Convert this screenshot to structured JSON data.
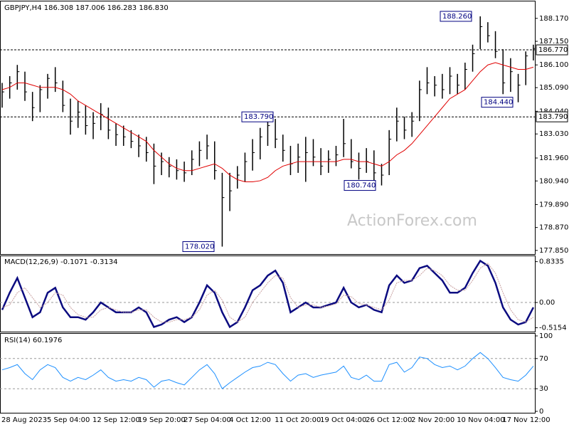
{
  "chart_data": [
    {
      "type": "ohlc",
      "title": "GBPJPY,H4  186.308 187.006 186.283 186.830",
      "watermark": "ActionForex.com",
      "high": [
        185.3,
        185.6,
        186.1,
        185.8,
        184.9,
        185.2,
        185.7,
        186.0,
        185.4,
        184.6,
        184.5,
        184.3,
        184.0,
        184.4,
        184.2,
        183.5,
        183.4,
        183.2,
        183.0,
        182.9,
        182.6,
        182.2,
        182.0,
        181.9,
        181.8,
        182.3,
        182.7,
        183.0,
        182.7,
        181.3,
        181.3,
        181.6,
        182.2,
        182.8,
        183.3,
        183.79,
        183.7,
        183.0,
        182.5,
        182.6,
        182.9,
        182.8,
        182.4,
        182.3,
        182.5,
        183.7,
        182.8,
        182.2,
        182.4,
        182.3,
        181.7,
        183.2,
        184.2,
        183.8,
        184.0,
        185.4,
        186.0,
        185.6,
        185.7,
        186.0,
        185.7,
        186.2,
        187.0,
        188.26,
        188.0,
        187.6,
        186.8,
        186.4,
        185.7,
        186.7,
        187.0
      ],
      "low": [
        184.2,
        184.6,
        185.0,
        184.5,
        183.6,
        184.0,
        184.6,
        184.9,
        184.0,
        183.0,
        183.3,
        183.0,
        182.8,
        183.2,
        182.8,
        182.5,
        182.5,
        182.4,
        182.0,
        181.8,
        180.8,
        181.2,
        181.1,
        181.0,
        180.9,
        181.2,
        181.6,
        181.9,
        181.0,
        178.02,
        179.6,
        180.6,
        180.9,
        181.4,
        181.9,
        182.5,
        182.4,
        181.8,
        181.2,
        181.3,
        180.9,
        181.6,
        181.2,
        181.3,
        181.6,
        182.0,
        181.5,
        181.0,
        181.3,
        180.9,
        180.74,
        181.2,
        182.7,
        182.8,
        182.9,
        183.6,
        184.8,
        184.7,
        184.6,
        184.8,
        184.8,
        185.0,
        185.8,
        186.8,
        187.1,
        186.4,
        184.8,
        184.9,
        184.44,
        185.2,
        186.3
      ],
      "close": [
        184.9,
        185.3,
        185.8,
        184.9,
        184.2,
        185.0,
        185.5,
        185.3,
        184.3,
        183.6,
        184.0,
        183.4,
        183.5,
        183.9,
        183.2,
        183.0,
        182.9,
        182.7,
        182.5,
        182.2,
        181.6,
        181.8,
        181.6,
        181.4,
        181.3,
        181.9,
        182.3,
        182.5,
        181.4,
        180.2,
        180.5,
        181.2,
        181.8,
        182.2,
        182.9,
        183.4,
        182.8,
        182.3,
        181.7,
        182.0,
        182.2,
        182.0,
        181.6,
        181.9,
        182.1,
        182.6,
        181.8,
        181.5,
        181.8,
        181.3,
        181.2,
        182.8,
        183.6,
        183.2,
        183.6,
        185.0,
        185.3,
        185.2,
        185.0,
        185.6,
        185.2,
        185.9,
        186.6,
        187.8,
        187.4,
        186.7,
        185.3,
        185.8,
        185.2,
        186.5,
        186.83
      ],
      "bar_color": "#000000",
      "series": [
        {
          "color": "#e00000",
          "values": [
            185.0,
            185.1,
            185.3,
            185.3,
            185.2,
            185.1,
            185.1,
            185.1,
            185.0,
            184.8,
            184.5,
            184.3,
            184.1,
            183.9,
            183.7,
            183.5,
            183.3,
            183.1,
            182.9,
            182.7,
            182.3,
            182.0,
            181.7,
            181.5,
            181.4,
            181.4,
            181.5,
            181.6,
            181.7,
            181.5,
            181.2,
            181.0,
            180.9,
            180.9,
            180.95,
            181.1,
            181.4,
            181.6,
            181.7,
            181.8,
            181.8,
            181.8,
            181.8,
            181.8,
            181.8,
            181.9,
            181.9,
            181.8,
            181.8,
            181.7,
            181.6,
            181.8,
            182.1,
            182.3,
            182.6,
            183.0,
            183.4,
            183.8,
            184.2,
            184.6,
            184.8,
            185.0,
            185.4,
            185.8,
            186.1,
            186.2,
            186.1,
            186.0,
            185.9,
            185.9,
            186.0
          ]
        }
      ],
      "ylim": [
        177.72,
        188.86
      ],
      "yticks": [
        {
          "value": 188.17,
          "label": "188.170"
        },
        {
          "value": 187.15,
          "label": "187.150"
        },
        {
          "value": 186.1,
          "label": "186.100"
        },
        {
          "value": 185.09,
          "label": "185.090"
        },
        {
          "value": 184.04,
          "label": "184.040"
        },
        {
          "value": 183.03,
          "label": "183.030"
        },
        {
          "value": 181.96,
          "label": "181.960"
        },
        {
          "value": 180.94,
          "label": "180.940"
        },
        {
          "value": 179.89,
          "label": "179.890"
        },
        {
          "value": 178.87,
          "label": "178.870"
        },
        {
          "value": 177.85,
          "label": "177.850"
        }
      ],
      "hlines": [
        {
          "value": 186.77,
          "label": "186.770"
        },
        {
          "value": 183.79,
          "label": "183.790"
        }
      ],
      "annotations": [
        {
          "value": 188.26,
          "label": "188.260"
        },
        {
          "value": 183.79,
          "label": "183.790"
        },
        {
          "value": 178.02,
          "label": "178.020"
        },
        {
          "value": 180.74,
          "label": "180.740"
        },
        {
          "value": 184.44,
          "label": "184.440"
        }
      ]
    },
    {
      "type": "line",
      "title": "MACD(12,26,9) -0.1071 -0.3134",
      "series": [
        {
          "color": "#0b0b80",
          "values": [
            -0.15,
            0.2,
            0.5,
            0.1,
            -0.3,
            -0.2,
            0.2,
            0.3,
            -0.1,
            -0.3,
            -0.3,
            -0.35,
            -0.2,
            0.0,
            -0.1,
            -0.2,
            -0.2,
            -0.2,
            -0.1,
            -0.2,
            -0.5,
            -0.45,
            -0.35,
            -0.3,
            -0.4,
            -0.3,
            0.0,
            0.35,
            0.2,
            -0.2,
            -0.5,
            -0.4,
            -0.1,
            0.25,
            0.35,
            0.55,
            0.65,
            0.4,
            -0.2,
            -0.1,
            0.0,
            -0.1,
            -0.1,
            -0.05,
            0.0,
            0.3,
            0.0,
            -0.1,
            -0.05,
            -0.15,
            -0.2,
            0.35,
            0.55,
            0.4,
            0.45,
            0.7,
            0.75,
            0.6,
            0.45,
            0.2,
            0.2,
            0.3,
            0.6,
            0.85,
            0.75,
            0.4,
            -0.1,
            -0.35,
            -0.45,
            -0.4,
            -0.1
          ]
        },
        {
          "color": "#c8a0a0",
          "values": [
            -0.1,
            -0.05,
            0.2,
            0.3,
            0.1,
            -0.1,
            0.0,
            0.2,
            0.15,
            -0.1,
            -0.25,
            -0.3,
            -0.3,
            -0.15,
            -0.1,
            -0.15,
            -0.2,
            -0.2,
            -0.15,
            -0.15,
            -0.3,
            -0.4,
            -0.4,
            -0.35,
            -0.35,
            -0.3,
            -0.15,
            0.15,
            0.25,
            0.05,
            -0.3,
            -0.4,
            -0.3,
            0.0,
            0.2,
            0.4,
            0.55,
            0.5,
            0.1,
            -0.1,
            -0.05,
            -0.05,
            -0.1,
            -0.07,
            -0.03,
            0.15,
            0.12,
            -0.02,
            -0.05,
            -0.1,
            -0.15,
            0.05,
            0.4,
            0.45,
            0.45,
            0.55,
            0.7,
            0.65,
            0.55,
            0.35,
            0.25,
            0.25,
            0.45,
            0.7,
            0.8,
            0.6,
            0.2,
            -0.15,
            -0.35,
            -0.4,
            -0.3
          ]
        }
      ],
      "ylim": [
        -0.58,
        0.93
      ],
      "yticks": [
        0.8335,
        {
          "value": 0,
          "label": "0.00"
        },
        -0.5154
      ],
      "grid_values": [
        0
      ]
    },
    {
      "type": "line",
      "title": "RSI(14) 60.1976",
      "categories": [
        "28 Aug 2023",
        null,
        null,
        null,
        null,
        null,
        "5 Sep 04:00",
        null,
        null,
        null,
        null,
        null,
        "12 Sep 12:00",
        null,
        null,
        null,
        null,
        null,
        "19 Sep 20:00",
        null,
        null,
        null,
        null,
        null,
        "27 Sep 04:00",
        null,
        null,
        null,
        null,
        null,
        "4 Oct 12:00",
        null,
        null,
        null,
        null,
        null,
        "11 Oct 20:00",
        null,
        null,
        null,
        null,
        null,
        "19 Oct 04:00",
        null,
        null,
        null,
        null,
        null,
        "26 Oct 12:00",
        null,
        null,
        null,
        null,
        null,
        "2 Nov 20:00",
        null,
        null,
        null,
        null,
        null,
        "10 Nov 04:00",
        null,
        null,
        null,
        null,
        null,
        "17 Nov 12:00",
        null,
        null,
        null,
        null
      ],
      "series": [
        {
          "color": "#1e90ff",
          "values": [
            55,
            58,
            62,
            50,
            42,
            55,
            62,
            58,
            45,
            40,
            45,
            42,
            48,
            55,
            45,
            40,
            42,
            40,
            45,
            42,
            32,
            40,
            42,
            38,
            35,
            45,
            55,
            62,
            50,
            30,
            38,
            45,
            52,
            58,
            60,
            65,
            62,
            50,
            40,
            48,
            50,
            45,
            48,
            50,
            52,
            60,
            45,
            42,
            48,
            40,
            40,
            62,
            65,
            52,
            58,
            72,
            70,
            62,
            58,
            60,
            55,
            60,
            70,
            78,
            70,
            58,
            45,
            42,
            40,
            48,
            60
          ]
        }
      ],
      "ylim": [
        0,
        100
      ],
      "yticks": [
        100,
        70,
        30,
        0
      ],
      "grid_values": [
        70,
        30
      ]
    }
  ]
}
